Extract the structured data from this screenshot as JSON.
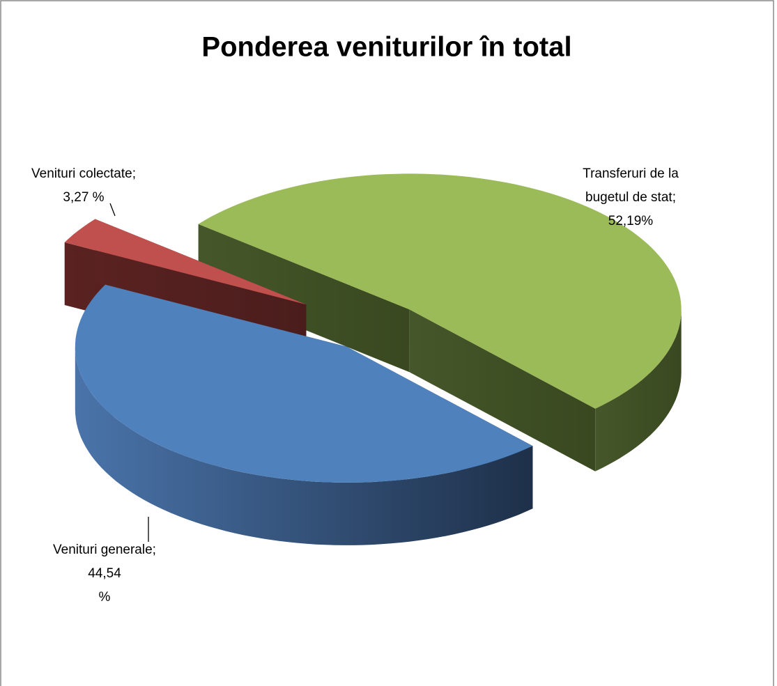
{
  "chart_data": {
    "type": "pie",
    "title": "Ponderea veniturilor în total",
    "categories": [
      "Transferuri de la bugetul de stat",
      "Venituri generale",
      "Venituri colectate"
    ],
    "values": [
      52.19,
      44.54,
      3.27
    ],
    "value_labels": [
      "52,19%",
      "44,54 %",
      "3,27 %"
    ],
    "label_separator": ";",
    "colors": [
      "#9bbb59",
      "#4f81bd",
      "#c0504d"
    ]
  }
}
